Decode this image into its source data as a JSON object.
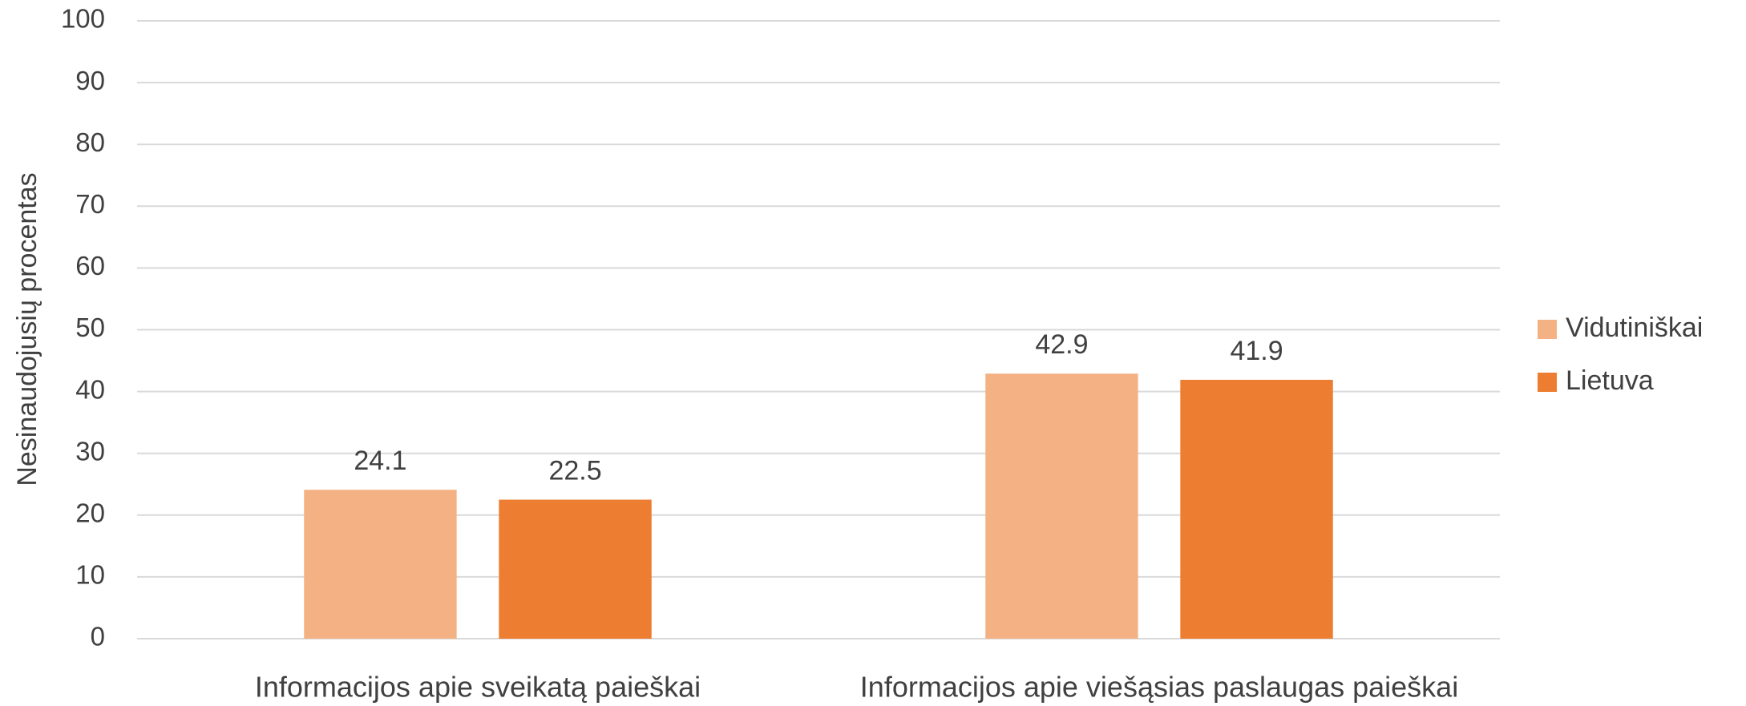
{
  "chart_data": {
    "type": "bar",
    "y_label": "Nesinaudojusių procentas",
    "categories": [
      "Informacijos apie sveikatą paieškai",
      "Informacijos apie viešąsias paslaugas paieškai"
    ],
    "series": [
      {
        "name": "Vidutiniškai",
        "color": "#f4b183",
        "values": [
          24.1,
          42.9
        ]
      },
      {
        "name": "Lietuva",
        "color": "#ed7d31",
        "values": [
          22.5,
          41.9
        ]
      }
    ],
    "ylim": [
      0,
      100
    ],
    "yticks": [
      0,
      10,
      20,
      30,
      40,
      50,
      60,
      70,
      80,
      90,
      100
    ],
    "grid": true,
    "legend": "right",
    "data_labels": true
  }
}
